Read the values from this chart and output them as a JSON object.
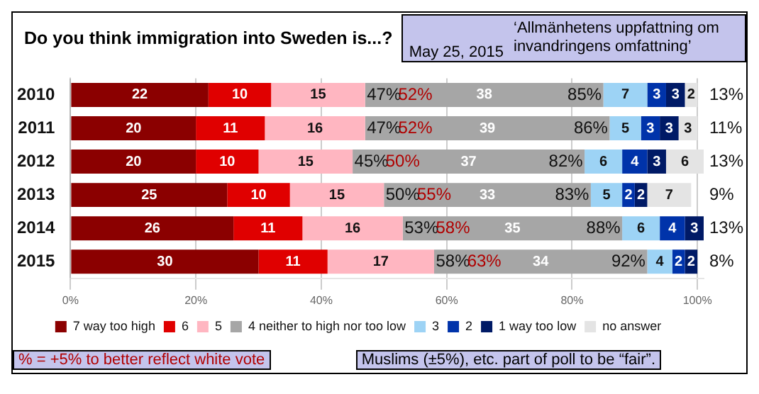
{
  "chart_data": {
    "type": "bar",
    "orientation": "horizontal",
    "stacked": true,
    "title": "Do you think immigration into Sweden is...?",
    "subtitle": "‘Allmänhetens uppfattning om invandringens omfattning’",
    "categories": [
      "2010",
      "2011",
      "2012",
      "2013",
      "2014",
      "2015"
    ],
    "series": [
      {
        "name": "7 way too high",
        "color": "#8b0000",
        "values": [
          22,
          20,
          20,
          25,
          26,
          30
        ],
        "value_labels": [
          "22",
          "20",
          "20",
          "25",
          "26",
          "30"
        ]
      },
      {
        "name": "6",
        "color": "#e00000",
        "values": [
          10,
          11,
          10,
          10,
          11,
          11
        ],
        "value_labels": [
          "10",
          "11",
          "10",
          "10",
          "11",
          "11"
        ]
      },
      {
        "name": "5",
        "color": "#ffb6c1",
        "values": [
          15,
          16,
          15,
          15,
          16,
          17
        ],
        "value_labels": [
          "15",
          "16",
          "15",
          "15",
          "16",
          "17"
        ]
      },
      {
        "name": "4 neither to high nor too low",
        "color": "#a6a6a6",
        "values": [
          38,
          39,
          37,
          33,
          35,
          34
        ],
        "value_labels": [
          "38",
          "39",
          "37",
          "33",
          "35",
          "34"
        ]
      },
      {
        "name": "3",
        "color": "#9dd3f5",
        "values": [
          7,
          5,
          6,
          5,
          6,
          4
        ],
        "value_labels": [
          "7",
          "5",
          "6",
          "5",
          "6",
          "4"
        ]
      },
      {
        "name": "2",
        "color": "#0033aa",
        "values": [
          3,
          3,
          4,
          2,
          4,
          2
        ],
        "value_labels": [
          "3",
          "3",
          "4",
          "2",
          "4",
          "2"
        ]
      },
      {
        "name": "1 way too low",
        "color": "#001a66",
        "values": [
          3,
          3,
          3,
          2,
          3,
          2
        ],
        "value_labels": [
          "3",
          "3",
          "3",
          "2",
          "3",
          "2"
        ]
      },
      {
        "name": "no answer",
        "color": "#e4e4e4",
        "values": [
          2,
          3,
          6,
          7,
          null,
          null
        ],
        "value_labels": [
          "2",
          "3",
          "6",
          "7",
          null,
          null
        ]
      }
    ],
    "xlim": [
      0,
      101
    ],
    "xticks": [
      {
        "value": 0,
        "label": "0%"
      },
      {
        "value": 20,
        "label": "20%"
      },
      {
        "value": 40,
        "label": "40%"
      },
      {
        "value": 60,
        "label": "60%"
      },
      {
        "value": 80,
        "label": "80%"
      },
      {
        "value": 100,
        "label": "100%"
      }
    ],
    "grid": "x",
    "legend": "bottom",
    "annotations": [
      {
        "text": "47%",
        "x": 50,
        "y": "2010"
      },
      {
        "text": "52%",
        "x": 55,
        "y": "2010"
      },
      {
        "text": "85%",
        "x": 82,
        "y": "2010"
      },
      {
        "text": "47%",
        "x": 50,
        "y": "2011"
      },
      {
        "text": "52%",
        "x": 55,
        "y": "2011"
      },
      {
        "text": "86%",
        "x": 83,
        "y": "2011"
      },
      {
        "text": "45%",
        "x": 48,
        "y": "2012"
      },
      {
        "text": "50%",
        "x": 53,
        "y": "2012"
      },
      {
        "text": "82%",
        "x": 79,
        "y": "2012"
      },
      {
        "text": "50%",
        "x": 53,
        "y": "2013"
      },
      {
        "text": "55%",
        "x": 58,
        "y": "2013"
      },
      {
        "text": "83%",
        "x": 80,
        "y": "2013"
      },
      {
        "text": "53%",
        "x": 56,
        "y": "2014"
      },
      {
        "text": "58%",
        "x": 61,
        "y": "2014"
      },
      {
        "text": "88%",
        "x": 85,
        "y": "2014"
      },
      {
        "text": "58%",
        "x": 61,
        "y": "2015"
      },
      {
        "text": "63%",
        "x": 66,
        "y": "2015"
      },
      {
        "text": "92%",
        "x": 89,
        "y": "2015"
      },
      "13%",
      "11%",
      "13%",
      "9%",
      "13%",
      "8%",
      "May 25, 2015",
      "% = +5% to better reflect white vote",
      "Muslims (±5%), etc. part of poll to be “fair”."
    ]
  }
}
